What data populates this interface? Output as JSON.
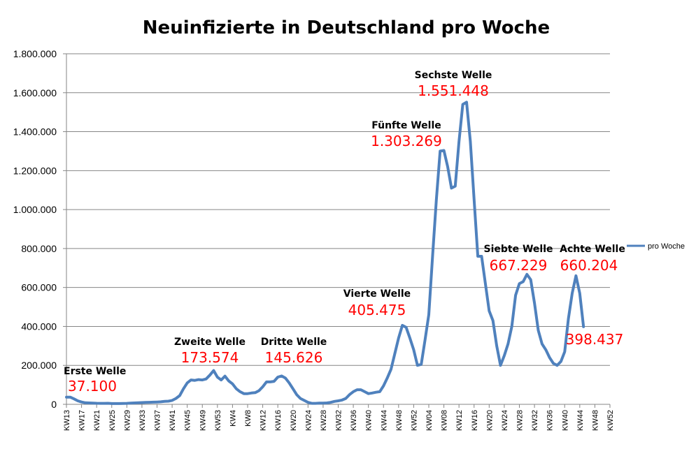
{
  "chart_data": {
    "type": "line",
    "title": "Neuinfizierte in Deutschland pro Woche",
    "xlabel": "",
    "ylabel": "",
    "ylim": [
      0,
      1800000
    ],
    "y_ticks": [
      0,
      200000,
      400000,
      600000,
      800000,
      1000000,
      1200000,
      1400000,
      1600000,
      1800000
    ],
    "y_tick_labels": [
      "0",
      "200.000",
      "400.000",
      "600.000",
      "800.000",
      "1.000.000",
      "1.200.000",
      "1.400.000",
      "1.600.000",
      "1.800.000"
    ],
    "x_tick_labels": [
      "KW13",
      "KW17",
      "KW21",
      "KW25",
      "KW29",
      "KW33",
      "KW37",
      "KW41",
      "KW45",
      "KW49",
      "KW53",
      "KW4",
      "KW8",
      "KW12",
      "KW16",
      "KW20",
      "KW24",
      "KW28",
      "KW32",
      "KW36",
      "KW40",
      "KW44",
      "KW48",
      "KW52",
      "KW04",
      "KW08",
      "KW12",
      "KW16",
      "KW20",
      "KW24",
      "KW28",
      "KW32",
      "KW36",
      "KW40",
      "KW44",
      "KW48",
      "KW52"
    ],
    "grid": true,
    "legend_position": "right",
    "series": [
      {
        "name": "pro Woche",
        "color": "#4f81bd",
        "values": [
          37100,
          37000,
          28000,
          18000,
          12000,
          8000,
          7000,
          6500,
          5500,
          5000,
          5000,
          5500,
          4000,
          4000,
          4000,
          4500,
          5000,
          6000,
          7000,
          8000,
          9000,
          10000,
          10500,
          11000,
          12000,
          13000,
          15000,
          16000,
          20000,
          30000,
          45000,
          80000,
          110000,
          125000,
          123000,
          127000,
          125000,
          130000,
          150000,
          173574,
          140000,
          125000,
          145000,
          120000,
          105000,
          80000,
          65000,
          55000,
          55000,
          58000,
          60000,
          70000,
          90000,
          115000,
          115000,
          118000,
          140000,
          145626,
          135000,
          110000,
          80000,
          50000,
          30000,
          20000,
          10000,
          5000,
          5000,
          6000,
          6000,
          7000,
          10000,
          15000,
          18000,
          22000,
          30000,
          50000,
          65000,
          75000,
          75000,
          65000,
          55000,
          58000,
          62000,
          65000,
          95000,
          135000,
          180000,
          260000,
          340000,
          405475,
          395000,
          340000,
          280000,
          200000,
          205000,
          330000,
          460000,
          760000,
          1050000,
          1300000,
          1303269,
          1220000,
          1110000,
          1120000,
          1350000,
          1540000,
          1551448,
          1350000,
          1050000,
          760000,
          760000,
          620000,
          480000,
          430000,
          300000,
          200000,
          250000,
          310000,
          400000,
          560000,
          620000,
          630000,
          667229,
          640000,
          520000,
          380000,
          310000,
          280000,
          240000,
          210000,
          200000,
          220000,
          270000,
          440000,
          570000,
          660204,
          570000,
          398437
        ]
      }
    ],
    "annotations": [
      {
        "label": "Erste Welle",
        "value": "37.100"
      },
      {
        "label": "Zweite Welle",
        "value": "173.574"
      },
      {
        "label": "Dritte Welle",
        "value": "145.626"
      },
      {
        "label": "Vierte Welle",
        "value": "405.475"
      },
      {
        "label": "Fünfte Welle",
        "value": "1.303.269"
      },
      {
        "label": "Sechste Welle",
        "value": "1.551.448"
      },
      {
        "label": "Siebte Welle",
        "value": "667.229"
      },
      {
        "label": "Achte Welle",
        "value": "660.204"
      },
      {
        "label": "",
        "value": "398.437"
      }
    ]
  }
}
